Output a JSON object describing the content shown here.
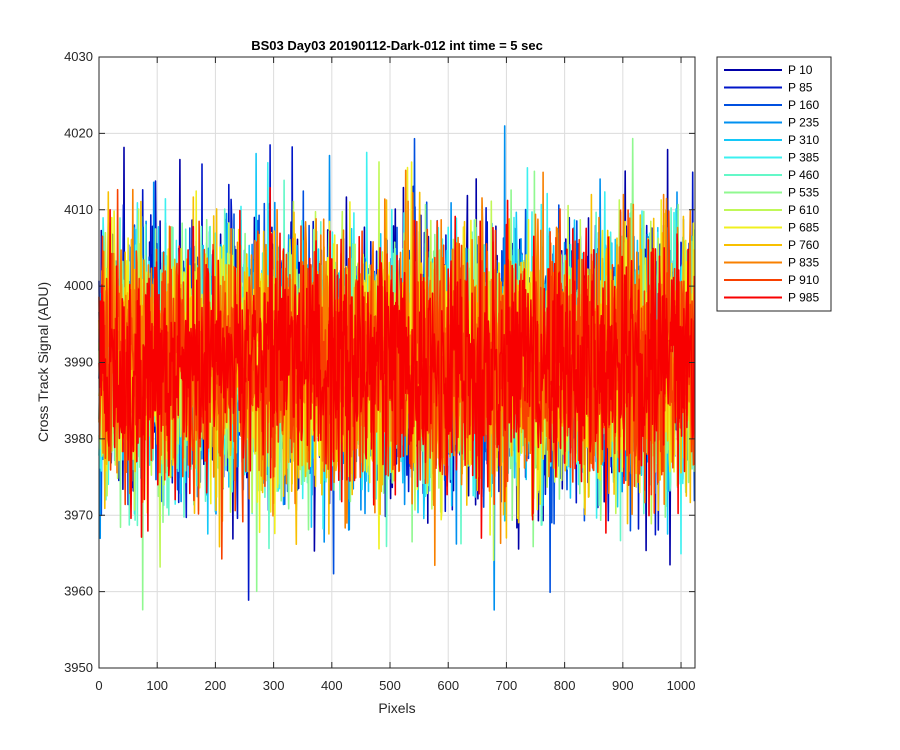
{
  "chart_data": {
    "type": "line",
    "title": "BS03 Day03 20190112-Dark-012 int time = 5 sec",
    "xlabel": "Pixels",
    "ylabel": "Cross Track Signal (ADU)",
    "xlim": [
      0,
      1024
    ],
    "ylim": [
      3950,
      4030
    ],
    "xticks": [
      0,
      100,
      200,
      300,
      400,
      500,
      600,
      700,
      800,
      900,
      1000
    ],
    "yticks": [
      3950,
      3960,
      3970,
      3980,
      3990,
      4000,
      4010,
      4020,
      4030
    ],
    "grid": true,
    "legend_placement": "outside-right",
    "noise_model": {
      "mean": 3990,
      "std": 8,
      "points_per_series": 1024
    },
    "series": [
      {
        "name": "P 10",
        "color": "#0000a8"
      },
      {
        "name": "P 85",
        "color": "#0016c8"
      },
      {
        "name": "P 160",
        "color": "#0050e0"
      },
      {
        "name": "P 235",
        "color": "#0090f0"
      },
      {
        "name": "P 310",
        "color": "#14c8f8"
      },
      {
        "name": "P 385",
        "color": "#3cf0f0"
      },
      {
        "name": "P 460",
        "color": "#64f8c8"
      },
      {
        "name": "P 535",
        "color": "#90f890"
      },
      {
        "name": "P 610",
        "color": "#c0f858"
      },
      {
        "name": "P 685",
        "color": "#f0f020"
      },
      {
        "name": "P 760",
        "color": "#f8c000"
      },
      {
        "name": "P 835",
        "color": "#f88000"
      },
      {
        "name": "P 910",
        "color": "#f84000"
      },
      {
        "name": "P 985",
        "color": "#f80000"
      }
    ]
  }
}
